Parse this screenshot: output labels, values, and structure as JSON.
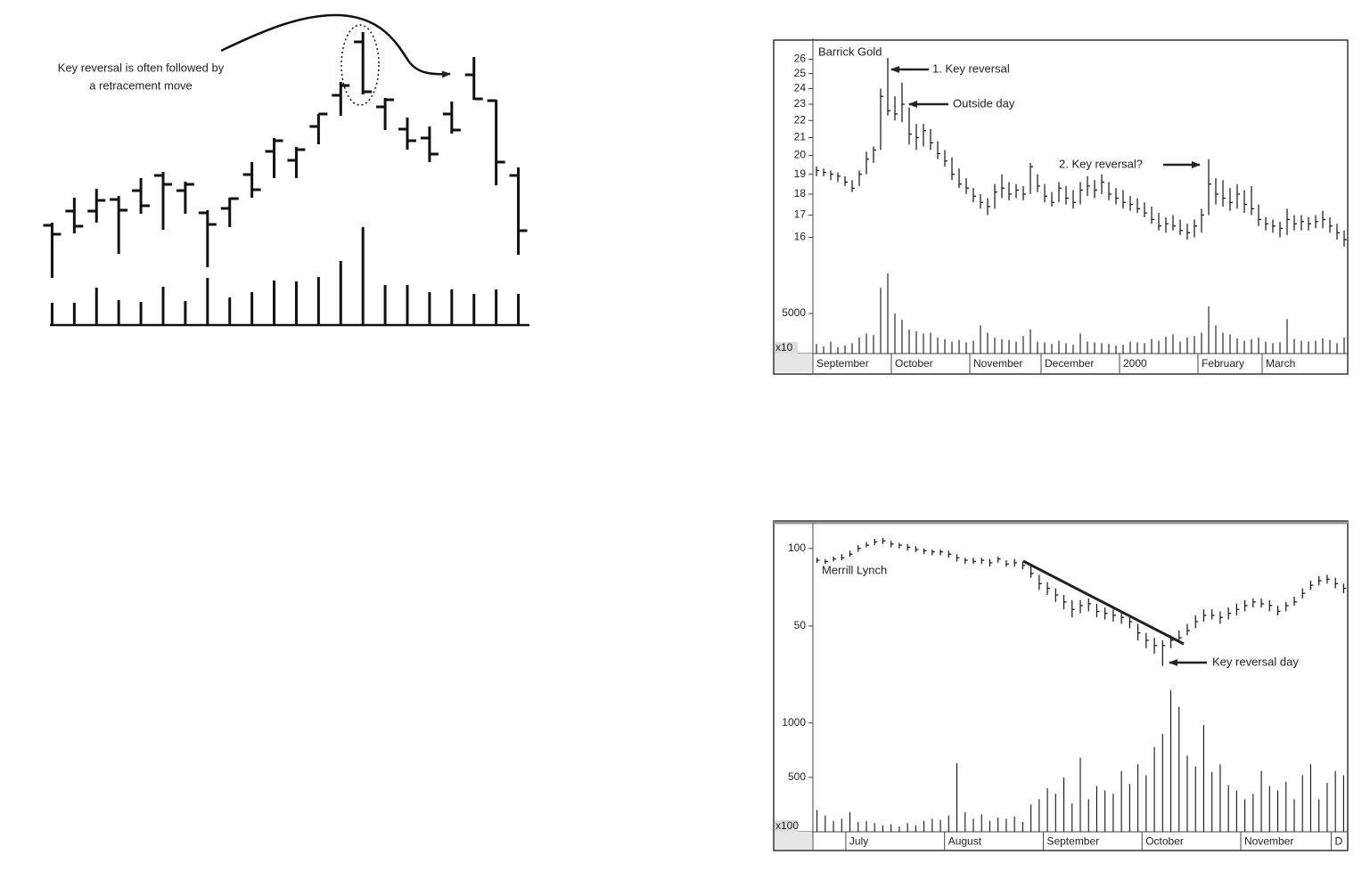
{
  "chart_data": [
    {
      "type": "ohlc",
      "annotation_lines": [
        "Key reversal is often followed by",
        "a retracement move"
      ],
      "open": [
        77,
        93,
        93,
        106,
        116,
        133,
        116,
        91,
        96,
        134,
        160,
        150,
        188,
        223,
        283,
        210,
        185,
        175,
        202,
        246,
        217,
        133
      ],
      "high": [
        80,
        108,
        118,
        110,
        130,
        137,
        126,
        94,
        108,
        148,
        175,
        165,
        202,
        238,
        294,
        220,
        198,
        188,
        216,
        266,
        218,
        142
      ],
      "low": [
        18,
        68,
        80,
        45,
        90,
        72,
        90,
        30,
        75,
        108,
        130,
        130,
        168,
        200,
        224,
        184,
        162,
        148,
        180,
        218,
        122,
        44
      ],
      "close": [
        67,
        76,
        105,
        94,
        99,
        123,
        123,
        78,
        107,
        117,
        172,
        162,
        202,
        234,
        227,
        218,
        172,
        157,
        184,
        219,
        148,
        71
      ],
      "volume": [
        25,
        25,
        42,
        28,
        26,
        43,
        27,
        53,
        31,
        37,
        50,
        49,
        54,
        72,
        110,
        45,
        45,
        37,
        40,
        35,
        40,
        35
      ],
      "ylim": [
        0,
        300
      ],
      "volume_ylim": [
        0,
        120
      ]
    },
    {
      "type": "ohlc",
      "title": "Barrick Gold",
      "categories": [
        "September",
        null,
        null,
        null,
        null,
        null,
        null,
        null,
        null,
        null,
        null,
        "October",
        null,
        null,
        null,
        null,
        null,
        null,
        null,
        null,
        null,
        null,
        "November",
        null,
        null,
        null,
        null,
        null,
        null,
        null,
        null,
        null,
        "December",
        null,
        null,
        null,
        null,
        null,
        null,
        null,
        null,
        null,
        null,
        "2000",
        null,
        null,
        null,
        null,
        null,
        null,
        null,
        null,
        null,
        null,
        "February",
        null,
        null,
        null,
        null,
        null,
        null,
        null,
        null,
        "March",
        null,
        null,
        null,
        null,
        null,
        null,
        null,
        null,
        null,
        null,
        null
      ],
      "high": [
        19.4,
        19.3,
        19.2,
        19.1,
        18.9,
        18.7,
        19.2,
        20.2,
        20.5,
        24.0,
        26.1,
        23.5,
        24.4,
        22.8,
        21.8,
        21.8,
        21.5,
        20.8,
        20.3,
        19.9,
        19.3,
        18.8,
        18.3,
        18.0,
        17.8,
        18.5,
        19.0,
        18.6,
        18.5,
        18.4,
        19.6,
        19.0,
        18.5,
        18.1,
        18.6,
        18.4,
        18.2,
        18.6,
        18.9,
        18.7,
        19.0,
        18.6,
        18.3,
        18.2,
        17.9,
        17.8,
        17.6,
        17.4,
        17.1,
        16.9,
        17.0,
        16.8,
        16.6,
        16.8,
        17.3,
        19.8,
        18.8,
        18.7,
        18.3,
        18.5,
        18.2,
        18.4,
        17.5,
        16.9,
        16.8,
        16.7,
        17.3,
        17.0,
        17.0,
        16.9,
        17.0,
        17.2,
        16.9,
        16.6,
        16.3
      ],
      "low": [
        18.9,
        18.9,
        18.7,
        18.6,
        18.4,
        18.1,
        18.4,
        19.0,
        19.6,
        20.3,
        22.3,
        22.0,
        21.9,
        20.6,
        20.3,
        20.5,
        20.3,
        19.8,
        19.4,
        18.7,
        18.3,
        18.0,
        17.6,
        17.3,
        17.0,
        17.3,
        17.8,
        17.7,
        17.8,
        17.7,
        18.0,
        18.1,
        17.6,
        17.4,
        17.6,
        17.5,
        17.3,
        17.5,
        17.9,
        17.8,
        18.0,
        17.7,
        17.5,
        17.3,
        17.2,
        17.1,
        16.9,
        16.6,
        16.3,
        16.2,
        16.3,
        16.1,
        15.9,
        16.0,
        16.2,
        17.0,
        17.5,
        17.4,
        17.2,
        17.3,
        17.1,
        17.0,
        16.5,
        16.3,
        16.2,
        16.0,
        16.1,
        16.3,
        16.3,
        16.3,
        16.4,
        16.4,
        16.2,
        15.9,
        15.6
      ],
      "close": [
        19.2,
        19.1,
        19.0,
        18.9,
        18.6,
        18.3,
        19.0,
        19.8,
        20.3,
        23.5,
        22.6,
        22.4,
        23.0,
        21.2,
        21.0,
        21.4,
        20.7,
        20.1,
        19.7,
        19.0,
        18.5,
        18.3,
        17.9,
        17.6,
        17.4,
        18.1,
        18.3,
        18.0,
        18.2,
        18.0,
        19.4,
        18.4,
        17.9,
        17.6,
        18.3,
        17.8,
        17.6,
        18.2,
        18.4,
        18.2,
        18.6,
        18.0,
        17.8,
        17.6,
        17.5,
        17.3,
        17.1,
        16.8,
        16.5,
        16.6,
        16.5,
        16.3,
        16.2,
        16.5,
        17.0,
        18.5,
        18.0,
        17.8,
        17.6,
        18.0,
        17.5,
        17.3,
        16.8,
        16.6,
        16.5,
        16.4,
        16.8,
        16.6,
        16.7,
        16.6,
        16.7,
        16.8,
        16.5,
        16.2,
        15.9
      ],
      "volume": [
        1200,
        900,
        1500,
        800,
        1000,
        1300,
        2000,
        2500,
        2300,
        8200,
        10000,
        5000,
        4200,
        3000,
        2800,
        2500,
        2600,
        2000,
        1800,
        1500,
        1700,
        1400,
        1600,
        3500,
        2600,
        2000,
        1800,
        1700,
        1500,
        2200,
        3000,
        1500,
        1400,
        1200,
        1600,
        1300,
        1100,
        2500,
        1500,
        1400,
        1300,
        1200,
        1000,
        1100,
        1500,
        1400,
        1300,
        1800,
        1600,
        2100,
        2400,
        1500,
        2000,
        2200,
        2600,
        5900,
        3500,
        2600,
        2400,
        1900,
        1600,
        1800,
        2000,
        1500,
        1300,
        1400,
        4300,
        1800,
        1600,
        1500,
        1600,
        1900,
        1700,
        1300,
        2000
      ],
      "ylim": [
        14.5,
        27
      ],
      "log_scale": true,
      "yticks": [
        16,
        17,
        18,
        19,
        20,
        21,
        22,
        23,
        24,
        25,
        26
      ],
      "volume_ylim": [
        0,
        10000
      ],
      "volume_yticks": [
        5000
      ],
      "volume_unit_label": "x10",
      "annotations": [
        "1. Key reversal",
        "Outside day",
        "2. Key reversal?"
      ]
    },
    {
      "type": "ohlc",
      "title": "Merrill Lynch",
      "categories": [
        null,
        null,
        null,
        null,
        "July",
        null,
        null,
        null,
        null,
        null,
        null,
        null,
        null,
        null,
        null,
        null,
        "August",
        null,
        null,
        null,
        null,
        null,
        null,
        null,
        null,
        null,
        null,
        null,
        "September",
        null,
        null,
        null,
        null,
        null,
        null,
        null,
        null,
        null,
        null,
        null,
        "October",
        null,
        null,
        null,
        null,
        null,
        null,
        null,
        null,
        null,
        null,
        null,
        "November",
        null,
        null,
        null,
        null,
        null,
        null,
        null,
        null,
        null,
        null,
        "D",
        null
      ],
      "high": [
        92,
        91,
        93,
        95,
        98,
        103,
        106,
        109,
        110,
        107,
        105,
        104,
        102,
        100,
        99,
        99,
        98,
        95,
        92,
        92,
        92,
        91,
        93,
        90,
        91,
        89,
        86,
        79,
        74,
        70,
        66,
        63,
        63,
        64,
        61,
        59,
        58,
        57,
        55,
        51,
        47,
        45,
        44,
        46,
        48,
        51,
        55,
        58,
        58,
        57,
        59,
        61,
        63,
        64,
        64,
        63,
        60,
        62,
        65,
        70,
        75,
        78,
        79,
        77,
        73
      ],
      "low": [
        88,
        87,
        89,
        90,
        93,
        97,
        101,
        103,
        104,
        101,
        100,
        98,
        97,
        95,
        94,
        94,
        92,
        89,
        87,
        87,
        87,
        85,
        88,
        85,
        85,
        83,
        77,
        69,
        66,
        62,
        58,
        54,
        56,
        57,
        54,
        53,
        52,
        51,
        49,
        44,
        41,
        39,
        35,
        41,
        43,
        46,
        49,
        52,
        53,
        51,
        53,
        55,
        57,
        59,
        59,
        57,
        55,
        57,
        60,
        64,
        69,
        72,
        73,
        70,
        67
      ],
      "close": [
        90,
        89,
        91,
        92,
        95,
        100,
        103,
        106,
        107,
        104,
        103,
        101,
        99,
        98,
        97,
        97,
        95,
        92,
        90,
        89,
        90,
        88,
        91,
        87,
        88,
        86,
        80,
        73,
        70,
        66,
        62,
        58,
        60,
        61,
        57,
        56,
        55,
        54,
        52,
        47,
        44,
        42,
        42,
        44,
        45,
        48,
        52,
        55,
        55,
        54,
        56,
        58,
        60,
        62,
        61,
        60,
        57,
        60,
        62,
        67,
        72,
        75,
        76,
        73,
        70
      ],
      "volume": [
        200,
        150,
        100,
        120,
        180,
        90,
        100,
        80,
        60,
        70,
        50,
        80,
        60,
        100,
        120,
        110,
        150,
        630,
        180,
        120,
        160,
        100,
        130,
        120,
        140,
        90,
        250,
        300,
        400,
        350,
        500,
        260,
        680,
        300,
        420,
        380,
        350,
        560,
        440,
        620,
        520,
        780,
        900,
        1300,
        1150,
        700,
        600,
        980,
        550,
        620,
        430,
        380,
        300,
        350,
        560,
        420,
        380,
        460,
        300,
        520,
        620,
        300,
        450,
        560,
        520
      ],
      "ylim": [
        32,
        118
      ],
      "log_scale": true,
      "yticks": [
        50,
        100
      ],
      "volume_ylim": [
        0,
        1350
      ],
      "volume_yticks": [
        500,
        1000
      ],
      "volume_unit_label": "x100",
      "annotations": [
        "Key reversal day"
      ]
    }
  ]
}
